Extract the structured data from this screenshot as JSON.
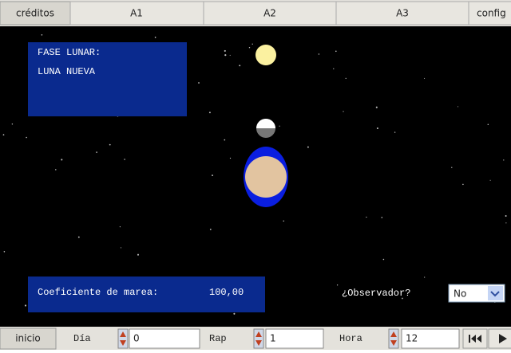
{
  "tabs": [
    "créditos",
    "A1",
    "A2",
    "A3",
    "config"
  ],
  "info_panel": {
    "title": "FASE LUNAR:",
    "phase": "LUNA NUEVA"
  },
  "tide_panel": {
    "label": "Coeficiente de marea:",
    "value": "100,00"
  },
  "observer": {
    "label": "¿Observador?",
    "selected": "No"
  },
  "controls": {
    "reset": "inicio",
    "day_label": "Día",
    "day_value": "0",
    "speed_label": "Rap",
    "speed_value": "1",
    "hour_label": "Hora",
    "hour_value": "12"
  }
}
